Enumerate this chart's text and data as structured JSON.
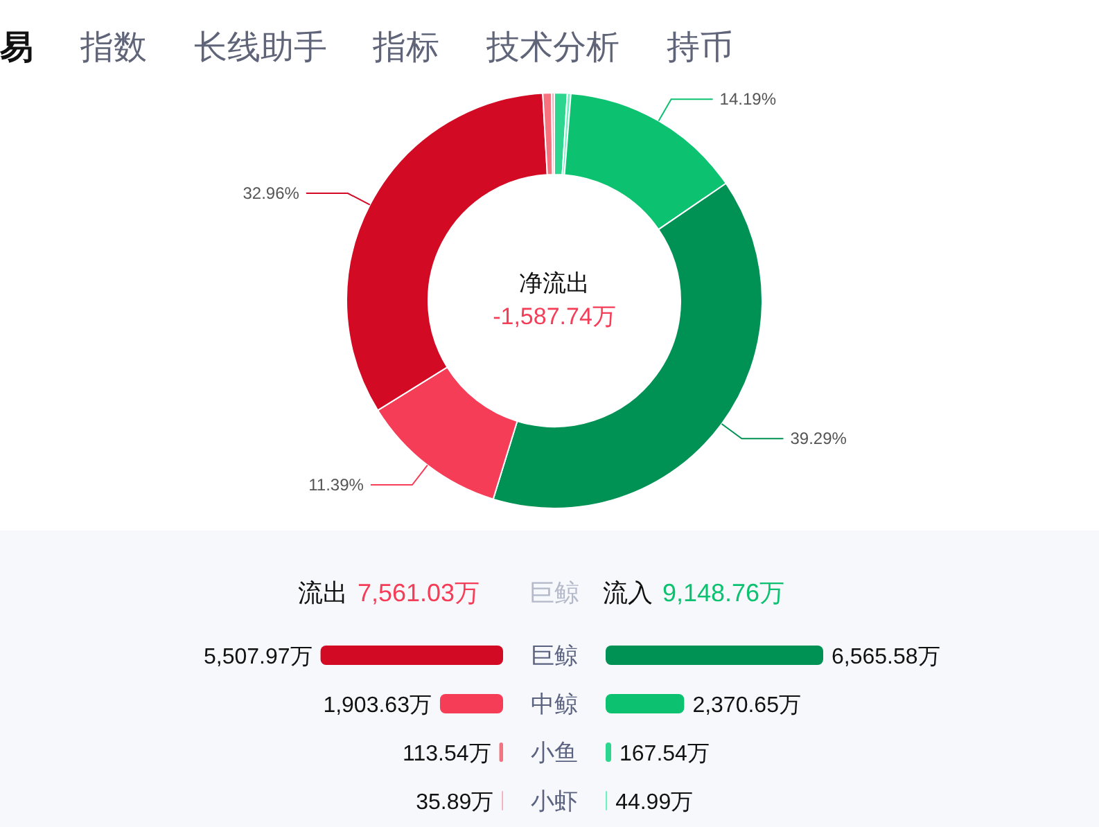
{
  "chart_data": [
    {
      "type": "other",
      "annotations": [
        "易",
        "指数",
        "长线助手",
        "指标",
        "技术分析",
        "持币"
      ]
    },
    {
      "type": "donut",
      "categories": [
        null,
        null,
        null,
        null,
        null,
        null,
        null,
        null
      ],
      "values": [
        1.0,
        0.27,
        14.19,
        39.29,
        11.39,
        32.96,
        0.68,
        0.21
      ],
      "colors": [
        "#2dd68e",
        "#6ff0c0",
        "#0cc271",
        "#009254",
        "#f63d58",
        "#d20a24",
        "#f6727f",
        "#f9a9b4"
      ],
      "value_labels": [
        null,
        null,
        "14.19%",
        "39.29%",
        "11.39%",
        "32.96%",
        null,
        null
      ],
      "annotations": [
        "净流出",
        "-1,587.74万"
      ]
    },
    {
      "type": "bar",
      "orientation": "horizontal",
      "categories": [
        "巨鲸",
        "中鲸",
        "小鱼",
        "小虾"
      ],
      "series": [
        {
          "name": "流出",
          "colors": [
            "#d20a24",
            "#f63d58",
            "#f6727f",
            "#f9a9b4"
          ],
          "values": [
            5507.97,
            1903.63,
            113.54,
            35.89
          ],
          "value_labels": [
            "5,507.97万",
            "1,903.63万",
            "113.54万",
            "35.89万"
          ]
        }
      ],
      "annotations": [
        "7,561.03万",
        "巨鲸"
      ]
    },
    {
      "type": "bar",
      "orientation": "horizontal",
      "categories": [
        null,
        null,
        null,
        null
      ],
      "series": [
        {
          "name": "流入",
          "colors": [
            "#009254",
            "#0cc271",
            "#2dd68e",
            "#6ff0c0"
          ],
          "values": [
            6565.58,
            2370.65,
            167.54,
            44.99
          ],
          "value_labels": [
            "6,565.58万",
            "2,370.65万",
            "167.54万",
            "44.99万"
          ]
        }
      ],
      "annotations": [
        "9,148.76万"
      ]
    }
  ]
}
